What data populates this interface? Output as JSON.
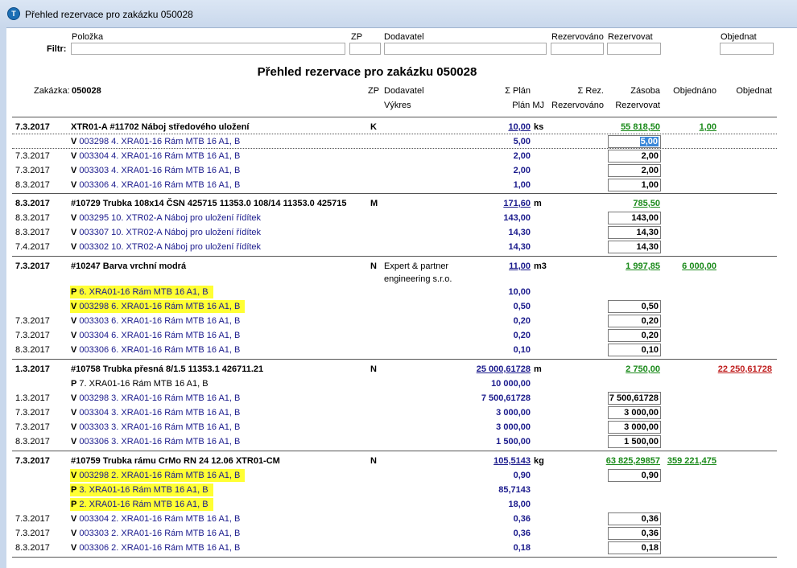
{
  "window": {
    "title": "Přehled rezervace pro zakázku 050028",
    "icon": "app-logo-icon"
  },
  "filter": {
    "label": "Filtr:",
    "labels": {
      "polozka": "Položka",
      "zp": "ZP",
      "dodavatel": "Dodavatel",
      "rezervovano": "Rezervováno",
      "rezervovat": "Rezervovat",
      "objednat": "Objednat"
    },
    "values": {
      "polozka": "",
      "zp": "",
      "dodavatel": "",
      "rezervovano": "",
      "rezervovat": "",
      "objednat": ""
    }
  },
  "report": {
    "title": "Přehled rezervace pro zakázku 050028",
    "order_label": "Zakázka:",
    "order_number": "050028"
  },
  "headers": {
    "zp": "ZP",
    "dodavatel": "Dodavatel",
    "vykres": "Výkres",
    "plan": "Σ Plán",
    "plan_mj": "Plán MJ",
    "rez": "Σ Rez.",
    "rezervovano": "Rezervováno",
    "zasoba": "Zásoba",
    "rezervovat": "Rezervovat",
    "objednano": "Objednáno",
    "objednat": "Objednat"
  },
  "groups": [
    {
      "main": {
        "date": "7.3.2017",
        "item": "XTR01-A #11702 Náboj středového uložení",
        "zp": "K",
        "supplier": "",
        "supplier2": "",
        "plan": "10,00",
        "unit": "ks",
        "stock": "55 818,50",
        "ordered": "1,00",
        "to_order": ""
      },
      "subs": [
        {
          "date": "",
          "type": "V",
          "text": "003298 4. XRA01-16 Rám MTB 16 A1, B",
          "plan": "5,00",
          "reserve": "5,00",
          "highlight": false,
          "selected": true
        },
        {
          "date": "7.3.2017",
          "type": "V",
          "text": "003304 4. XRA01-16 Rám MTB 16 A1, B",
          "plan": "2,00",
          "reserve": "2,00",
          "highlight": false
        },
        {
          "date": "7.3.2017",
          "type": "V",
          "text": "003303 4. XRA01-16 Rám MTB 16 A1, B",
          "plan": "2,00",
          "reserve": "2,00",
          "highlight": false
        },
        {
          "date": "8.3.2017",
          "type": "V",
          "text": "003306 4. XRA01-16 Rám MTB 16 A1, B",
          "plan": "1,00",
          "reserve": "1,00",
          "highlight": false
        }
      ]
    },
    {
      "main": {
        "date": "8.3.2017",
        "item": "#10729 Trubka 108x14 ČSN 425715 11353.0 108/14 11353.0 425715",
        "zp": "M",
        "supplier": "",
        "supplier2": "",
        "plan": "171,60",
        "unit": "m",
        "stock": "785,50",
        "ordered": "",
        "to_order": ""
      },
      "subs": [
        {
          "date": "8.3.2017",
          "type": "V",
          "text": "003295 10. XTR02-A Náboj pro uložení řídítek",
          "plan": "143,00",
          "reserve": "143,00",
          "highlight": false
        },
        {
          "date": "8.3.2017",
          "type": "V",
          "text": "003307 10. XTR02-A Náboj pro uložení řídítek",
          "plan": "14,30",
          "reserve": "14,30",
          "highlight": false
        },
        {
          "date": "7.4.2017",
          "type": "V",
          "text": "003302 10. XTR02-A Náboj pro uložení řídítek",
          "plan": "14,30",
          "reserve": "14,30",
          "highlight": false
        }
      ]
    },
    {
      "main": {
        "date": "7.3.2017",
        "item": "#10247 Barva vrchní modrá",
        "zp": "N",
        "supplier": "Expert & partner",
        "supplier2": "engineering s.r.o.",
        "plan": "11,00",
        "unit": "m3",
        "stock": "1 997,85",
        "ordered": "6 000,00",
        "to_order": ""
      },
      "subs": [
        {
          "date": "",
          "type": "P",
          "text": "6. XRA01-16 Rám MTB 16 A1, B",
          "plan": "10,00",
          "reserve": "",
          "highlight": true
        },
        {
          "date": "",
          "type": "V",
          "text": "003298 6. XRA01-16 Rám MTB 16 A1, B",
          "plan": "0,50",
          "reserve": "0,50",
          "highlight": true
        },
        {
          "date": "7.3.2017",
          "type": "V",
          "text": "003303 6. XRA01-16 Rám MTB 16 A1, B",
          "plan": "0,20",
          "reserve": "0,20",
          "highlight": false
        },
        {
          "date": "7.3.2017",
          "type": "V",
          "text": "003304 6. XRA01-16 Rám MTB 16 A1, B",
          "plan": "0,20",
          "reserve": "0,20",
          "highlight": false
        },
        {
          "date": "8.3.2017",
          "type": "V",
          "text": "003306 6. XRA01-16 Rám MTB 16 A1, B",
          "plan": "0,10",
          "reserve": "0,10",
          "highlight": false
        }
      ]
    },
    {
      "main": {
        "date": "1.3.2017",
        "item": "#10758 Trubka přesná 8/1.5 11353.1 426711.21",
        "zp": "N",
        "supplier": "",
        "supplier2": "",
        "plan": "25 000,61728",
        "unit": "m",
        "stock": "2 750,00",
        "ordered": "",
        "to_order": "22 250,61728"
      },
      "subs": [
        {
          "date": "",
          "type": "P",
          "text": "7. XRA01-16 Rám MTB 16 A1, B",
          "plan": "10 000,00",
          "reserve": "",
          "highlight": false,
          "black": true
        },
        {
          "date": "1.3.2017",
          "type": "V",
          "text": "003298 3. XRA01-16 Rám MTB 16 A1, B",
          "plan": "7 500,61728",
          "reserve": "7 500,61728",
          "highlight": false
        },
        {
          "date": "7.3.2017",
          "type": "V",
          "text": "003304 3. XRA01-16 Rám MTB 16 A1, B",
          "plan": "3 000,00",
          "reserve": "3 000,00",
          "highlight": false
        },
        {
          "date": "7.3.2017",
          "type": "V",
          "text": "003303 3. XRA01-16 Rám MTB 16 A1, B",
          "plan": "3 000,00",
          "reserve": "3 000,00",
          "highlight": false
        },
        {
          "date": "8.3.2017",
          "type": "V",
          "text": "003306 3. XRA01-16 Rám MTB 16 A1, B",
          "plan": "1 500,00",
          "reserve": "1 500,00",
          "highlight": false
        }
      ]
    },
    {
      "main": {
        "date": "7.3.2017",
        "item": "#10759 Trubka rámu CrMo RN 24 12.06 XTR01-CM",
        "zp": "N",
        "supplier": "",
        "supplier2": "",
        "plan": "105,5143",
        "unit": "kg",
        "stock": "63 825,29857",
        "ordered": "359 221,475",
        "to_order": ""
      },
      "subs": [
        {
          "date": "",
          "type": "V",
          "text": "003298 2. XRA01-16 Rám MTB 16 A1, B",
          "plan": "0,90",
          "reserve": "0,90",
          "highlight": true
        },
        {
          "date": "",
          "type": "P",
          "text": "3. XRA01-16 Rám MTB 16 A1, B",
          "plan": "85,7143",
          "reserve": "",
          "highlight": true
        },
        {
          "date": "",
          "type": "P",
          "text": "2. XRA01-16 Rám MTB 16 A1, B",
          "plan": "18,00",
          "reserve": "",
          "highlight": true
        },
        {
          "date": "7.3.2017",
          "type": "V",
          "text": "003304 2. XRA01-16 Rám MTB 16 A1, B",
          "plan": "0,36",
          "reserve": "0,36",
          "highlight": false
        },
        {
          "date": "7.3.2017",
          "type": "V",
          "text": "003303 2. XRA01-16 Rám MTB 16 A1, B",
          "plan": "0,36",
          "reserve": "0,36",
          "highlight": false
        },
        {
          "date": "8.3.2017",
          "type": "V",
          "text": "003306 2. XRA01-16 Rám MTB 16 A1, B",
          "plan": "0,18",
          "reserve": "0,18",
          "highlight": false
        }
      ]
    }
  ]
}
